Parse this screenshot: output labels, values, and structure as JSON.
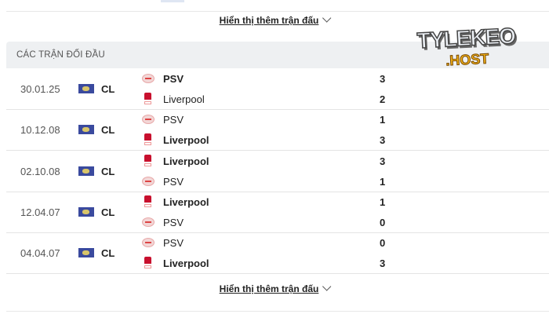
{
  "show_more_label": "Hiển thị thêm trận đấu",
  "section_title": "CÁC TRẬN ĐỐI ĐẦU",
  "watermark": {
    "line1": "TYLEKEO",
    "line2": ".HOST"
  },
  "matches": [
    {
      "date": "30.01.25",
      "competition": "CL",
      "home": {
        "name": "PSV",
        "icon": "psv-crest",
        "score": "3",
        "winner": true
      },
      "away": {
        "name": "Liverpool",
        "icon": "liverpool-crest",
        "score": "2",
        "winner": false
      }
    },
    {
      "date": "10.12.08",
      "competition": "CL",
      "home": {
        "name": "PSV",
        "icon": "psv-crest",
        "score": "1",
        "winner": false
      },
      "away": {
        "name": "Liverpool",
        "icon": "liverpool-crest",
        "score": "3",
        "winner": true
      }
    },
    {
      "date": "02.10.08",
      "competition": "CL",
      "home": {
        "name": "Liverpool",
        "icon": "liverpool-crest",
        "score": "3",
        "winner": true
      },
      "away": {
        "name": "PSV",
        "icon": "psv-crest",
        "score": "1",
        "winner": false
      }
    },
    {
      "date": "12.04.07",
      "competition": "CL",
      "home": {
        "name": "Liverpool",
        "icon": "liverpool-crest",
        "score": "1",
        "winner": true
      },
      "away": {
        "name": "PSV",
        "icon": "psv-crest",
        "score": "0",
        "winner": false
      }
    },
    {
      "date": "04.04.07",
      "competition": "CL",
      "home": {
        "name": "PSV",
        "icon": "psv-crest",
        "score": "0",
        "winner": false
      },
      "away": {
        "name": "Liverpool",
        "icon": "liverpool-crest",
        "score": "3",
        "winner": true
      }
    }
  ]
}
